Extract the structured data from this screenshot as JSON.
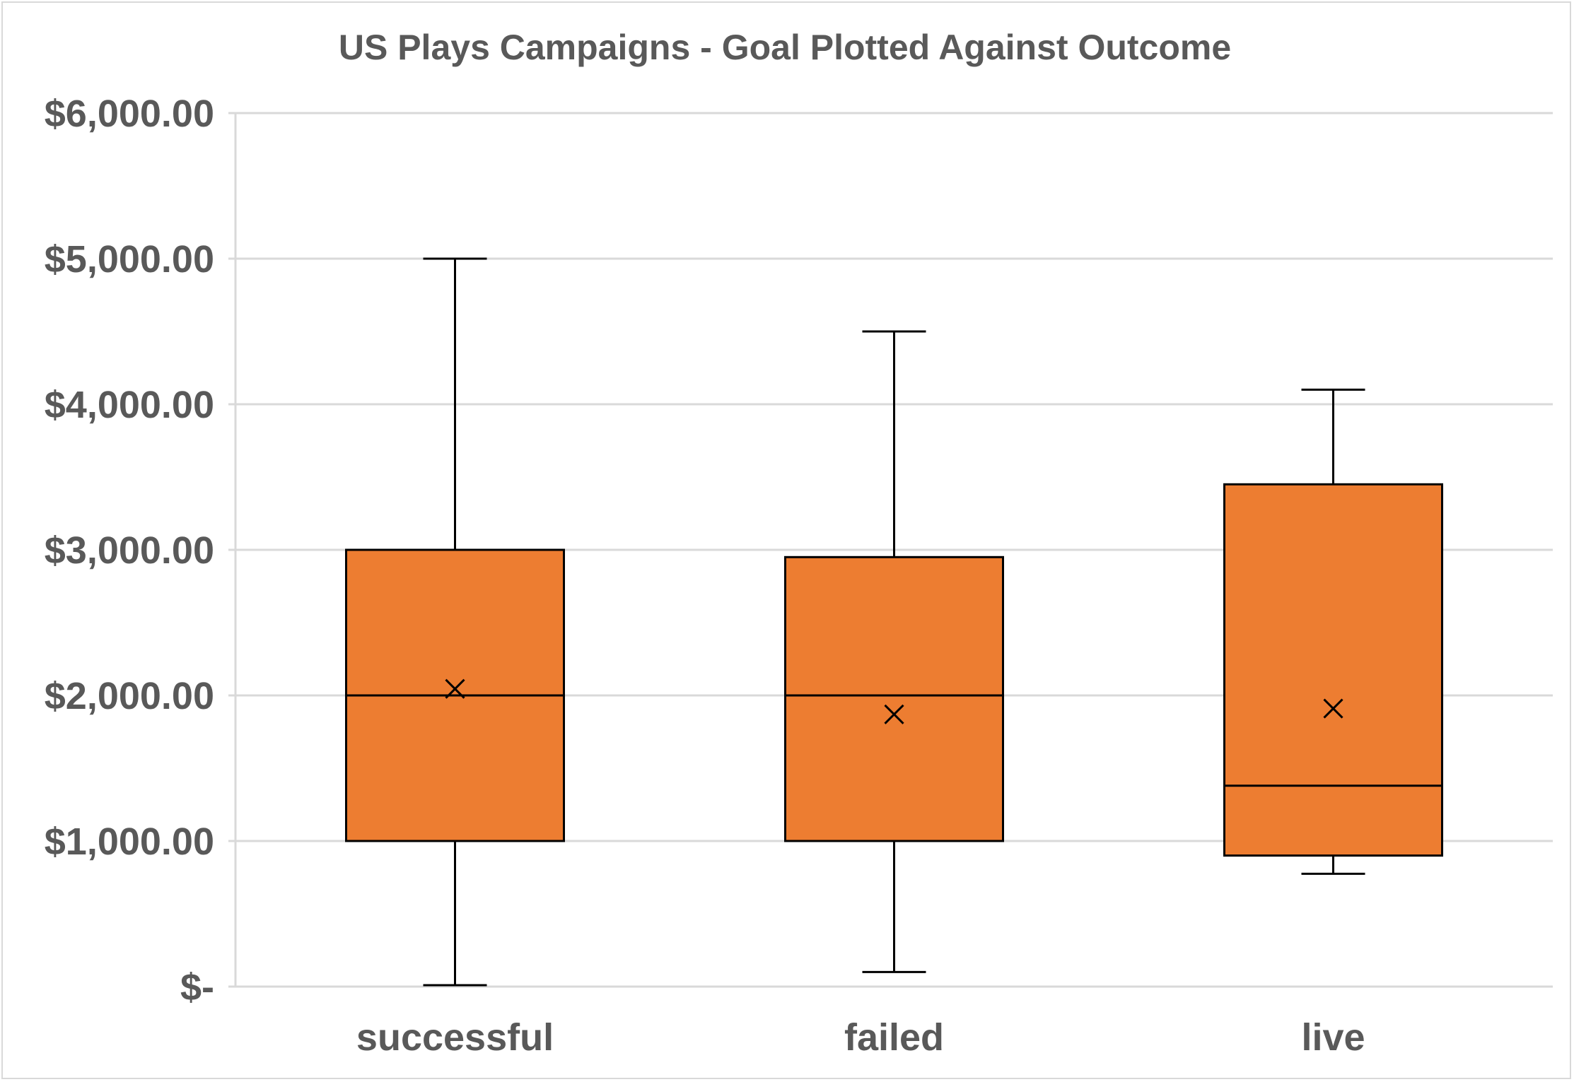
{
  "chart_data": {
    "type": "box",
    "title": "US Plays Campaigns - Goal Plotted Against Outcome",
    "xlabel": "",
    "ylabel": "",
    "ylim": [
      0,
      6000
    ],
    "y_ticks": [
      {
        "value": 0,
        "label": "$-"
      },
      {
        "value": 1000,
        "label": "$1,000.00"
      },
      {
        "value": 2000,
        "label": "$2,000.00"
      },
      {
        "value": 3000,
        "label": "$3,000.00"
      },
      {
        "value": 4000,
        "label": "$4,000.00"
      },
      {
        "value": 5000,
        "label": "$5,000.00"
      },
      {
        "value": 6000,
        "label": "$6,000.00"
      }
    ],
    "categories": [
      "successful",
      "failed",
      "live"
    ],
    "boxes": [
      {
        "category": "successful",
        "min": 10,
        "q1": 1000,
        "median": 2000,
        "q3": 3000,
        "max": 5000,
        "mean": 2045
      },
      {
        "category": "failed",
        "min": 100,
        "q1": 1000,
        "median": 2000,
        "q3": 2950,
        "max": 4500,
        "mean": 1870
      },
      {
        "category": "live",
        "min": 775,
        "q1": 900,
        "median": 1380,
        "q3": 3450,
        "max": 4100,
        "mean": 1910
      }
    ],
    "grid": true,
    "legend": "none",
    "box_color": "#ED7D31",
    "line_color": "#000000",
    "grid_color": "#D9D9D9"
  }
}
